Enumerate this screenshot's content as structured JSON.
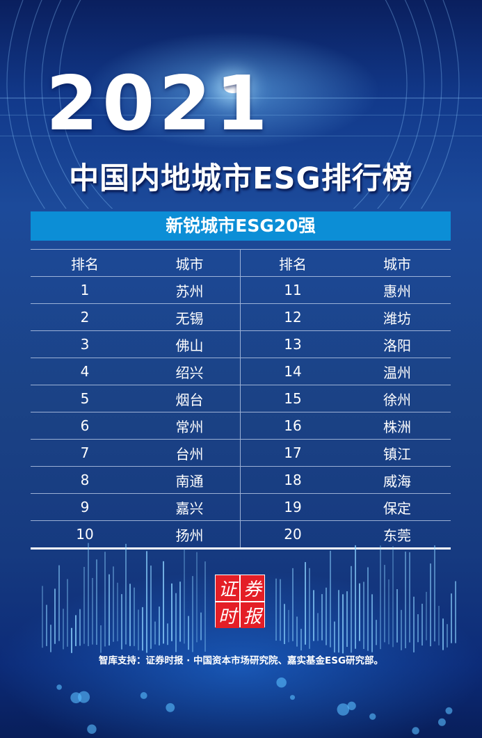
{
  "year": "2021",
  "title": "中国内地城市ESG排行榜",
  "banner": "新锐城市ESG20强",
  "headers": [
    "排名",
    "城市",
    "排名",
    "城市"
  ],
  "rows": [
    [
      "1",
      "苏州",
      "11",
      "惠州"
    ],
    [
      "2",
      "无锡",
      "12",
      "潍坊"
    ],
    [
      "3",
      "佛山",
      "13",
      "洛阳"
    ],
    [
      "4",
      "绍兴",
      "14",
      "温州"
    ],
    [
      "5",
      "烟台",
      "15",
      "徐州"
    ],
    [
      "6",
      "常州",
      "16",
      "株洲"
    ],
    [
      "7",
      "台州",
      "17",
      "镇江"
    ],
    [
      "8",
      "南通",
      "18",
      "威海"
    ],
    [
      "9",
      "嘉兴",
      "19",
      "保定"
    ],
    [
      "10",
      "扬州",
      "20",
      "东莞"
    ]
  ],
  "logo": [
    "证",
    "券",
    "时",
    "报"
  ],
  "footer": "智库支持：证券时报 · 中国资本市场研究院、嘉实基金ESG研究部。",
  "colors": {
    "banner": "#0c8ed6",
    "logo": "#e41e26",
    "background": "#1b4285"
  }
}
